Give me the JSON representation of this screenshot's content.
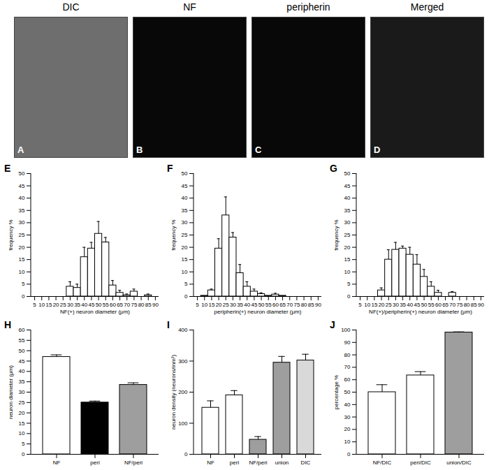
{
  "images": [
    {
      "label": "A",
      "title": "DIC"
    },
    {
      "label": "B",
      "title": "NF"
    },
    {
      "label": "C",
      "title": "peripherin"
    },
    {
      "label": "D",
      "title": "Merged"
    }
  ],
  "chart_data": [
    {
      "type": "histogram",
      "title": "E",
      "xlabel": "NF(+) neuron diameter (μm)",
      "ylabel": "frequency %",
      "bins": [
        2.5,
        7.5,
        12.5,
        17.5,
        22.5,
        27.5,
        32.5,
        37.5,
        42.5,
        47.5,
        52.5,
        57.5,
        62.5,
        67.5,
        72.5,
        77.5,
        82.5,
        87.5,
        92.5
      ],
      "values": [
        0,
        0,
        0,
        0,
        0,
        4,
        3.5,
        16,
        19.5,
        25.5,
        22,
        4.5,
        1.5,
        0.5,
        2,
        0,
        0.5,
        0
      ],
      "errors": [
        0,
        0,
        0,
        0,
        0,
        2,
        1.5,
        4,
        2.5,
        5,
        2,
        2,
        1,
        0.5,
        1,
        0,
        0.5,
        0
      ],
      "color": "#ffffff",
      "xlim": [
        2.5,
        92.5
      ],
      "xticks": [
        5,
        10,
        15,
        20,
        25,
        30,
        35,
        40,
        45,
        50,
        55,
        60,
        65,
        70,
        75,
        80,
        85,
        90
      ],
      "ylim": [
        0,
        50
      ],
      "yticks": [
        0,
        5,
        10,
        15,
        20,
        25,
        30,
        35,
        40,
        45,
        50
      ]
    },
    {
      "type": "histogram",
      "title": "F",
      "xlabel": "peripherin(+) neuron diameter (μm)",
      "ylabel": "frequency %",
      "bins": [
        2.5,
        7.5,
        12.5,
        17.5,
        22.5,
        27.5,
        32.5,
        37.5,
        42.5,
        47.5,
        52.5,
        57.5,
        62.5,
        67.5,
        72.5,
        77.5,
        82.5,
        87.5,
        92.5
      ],
      "values": [
        0,
        0.3,
        2.5,
        19.5,
        33,
        24,
        9.5,
        4,
        2,
        1,
        0.3,
        0.8,
        0.3,
        0,
        0,
        0,
        0,
        0
      ],
      "errors": [
        0,
        0,
        0.5,
        4,
        7.5,
        2,
        3.5,
        2,
        1,
        0.5,
        0,
        0.5,
        0,
        0,
        0,
        0,
        0,
        0
      ],
      "color": "#ffffff",
      "xlim": [
        2.5,
        92.5
      ],
      "xticks": [
        5,
        10,
        15,
        20,
        25,
        30,
        35,
        40,
        45,
        50,
        55,
        60,
        65,
        70,
        75,
        80,
        85,
        90
      ],
      "ylim": [
        0,
        50
      ],
      "yticks": [
        0,
        5,
        10,
        15,
        20,
        25,
        30,
        35,
        40,
        45,
        50
      ]
    },
    {
      "type": "histogram",
      "title": "G",
      "xlabel": "NF(+)/peripherin(+) neuron diameter (μm)",
      "ylabel": "frequency %",
      "bins": [
        2.5,
        7.5,
        12.5,
        17.5,
        22.5,
        27.5,
        32.5,
        37.5,
        42.5,
        47.5,
        52.5,
        57.5,
        62.5,
        67.5,
        72.5,
        77.5,
        82.5,
        87.5,
        92.5
      ],
      "values": [
        0,
        0,
        0,
        2.5,
        15,
        19,
        19.5,
        17,
        13,
        8,
        4,
        1.5,
        0,
        1.5,
        0,
        0,
        0,
        0
      ],
      "errors": [
        0,
        0,
        0,
        1,
        4,
        3,
        1,
        3,
        4,
        3,
        2,
        1,
        0,
        0.5,
        0,
        0,
        0,
        0
      ],
      "color": "#ffffff",
      "xlim": [
        2.5,
        92.5
      ],
      "xticks": [
        5,
        10,
        15,
        20,
        25,
        30,
        35,
        40,
        45,
        50,
        55,
        60,
        65,
        70,
        75,
        80,
        85,
        90
      ],
      "ylim": [
        0,
        50
      ],
      "yticks": [
        0,
        5,
        10,
        15,
        20,
        25,
        30,
        35,
        40,
        45,
        50
      ]
    },
    {
      "type": "bar",
      "title": "H",
      "ylabel": "neuron diameter (μm)",
      "categories": [
        "NF",
        "peri",
        "NF/peri"
      ],
      "values": [
        47,
        25,
        33.5
      ],
      "errors": [
        1,
        0.7,
        1
      ],
      "colors": [
        "#ffffff",
        "#000000",
        "#9e9e9e"
      ],
      "ylim": [
        0,
        60
      ],
      "yticks": [
        0,
        5,
        10,
        15,
        20,
        25,
        30,
        35,
        40,
        45,
        50,
        55,
        60
      ]
    },
    {
      "type": "bar",
      "title": "I",
      "ylabel": "neuron density (neurons/mm²)",
      "categories": [
        "NF",
        "peri",
        "NF/peri",
        "union",
        "DIC"
      ],
      "values": [
        150,
        190,
        47,
        295,
        302
      ],
      "errors": [
        22,
        15,
        10,
        20,
        20
      ],
      "colors": [
        "#ffffff",
        "#ffffff",
        "#9e9e9e",
        "#9e9e9e",
        "#d9d9d9"
      ],
      "ylim": [
        0,
        400
      ],
      "yticks": [
        0,
        100,
        200,
        300,
        400
      ]
    },
    {
      "type": "bar",
      "title": "J",
      "ylabel": "percentage %",
      "categories": [
        "NF/DIC",
        "peri/DIC",
        "union/DIC"
      ],
      "values": [
        50,
        63.5,
        98
      ],
      "errors": [
        6,
        3,
        0.5
      ],
      "colors": [
        "#ffffff",
        "#ffffff",
        "#9e9e9e"
      ],
      "ylim": [
        0,
        100
      ],
      "yticks": [
        0,
        10,
        20,
        30,
        40,
        50,
        60,
        70,
        80,
        90,
        100
      ]
    }
  ]
}
